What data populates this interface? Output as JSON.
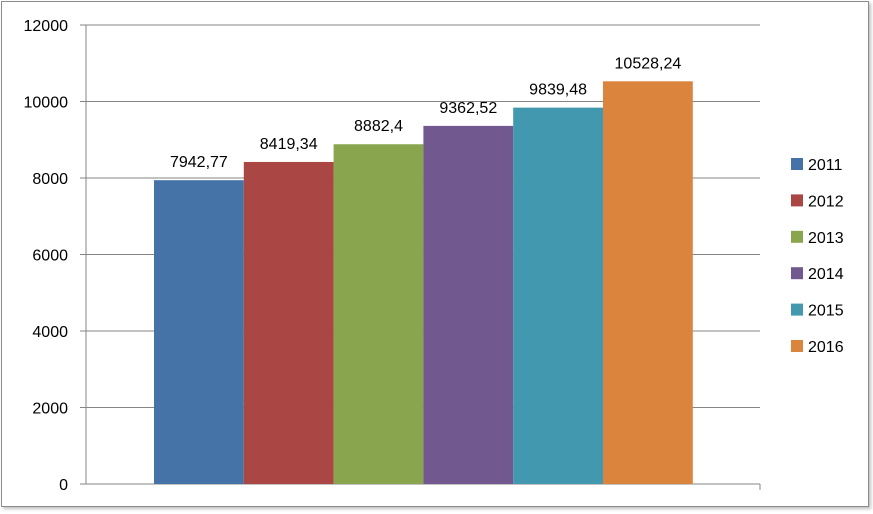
{
  "chart_data": {
    "type": "bar",
    "categories": [
      "2011",
      "2012",
      "2013",
      "2014",
      "2015",
      "2016"
    ],
    "values": [
      7942.77,
      8419.34,
      8882.4,
      9362.52,
      9839.48,
      10528.24
    ],
    "value_labels": [
      "7942,77",
      "8419,34",
      "8882,4",
      "9362,52",
      "9839,48",
      "10528,24"
    ],
    "colors": [
      "#4572a7",
      "#aa4643",
      "#89a54e",
      "#71588f",
      "#4198af",
      "#db843d"
    ],
    "legend": [
      "2011",
      "2012",
      "2013",
      "2014",
      "2015",
      "2016"
    ],
    "legend_position": "right",
    "yticks": [
      "0",
      "2000",
      "4000",
      "6000",
      "8000",
      "10000",
      "12000"
    ],
    "ylim": [
      0,
      12000
    ],
    "grid": true,
    "title": "",
    "xlabel": "",
    "ylabel": ""
  }
}
